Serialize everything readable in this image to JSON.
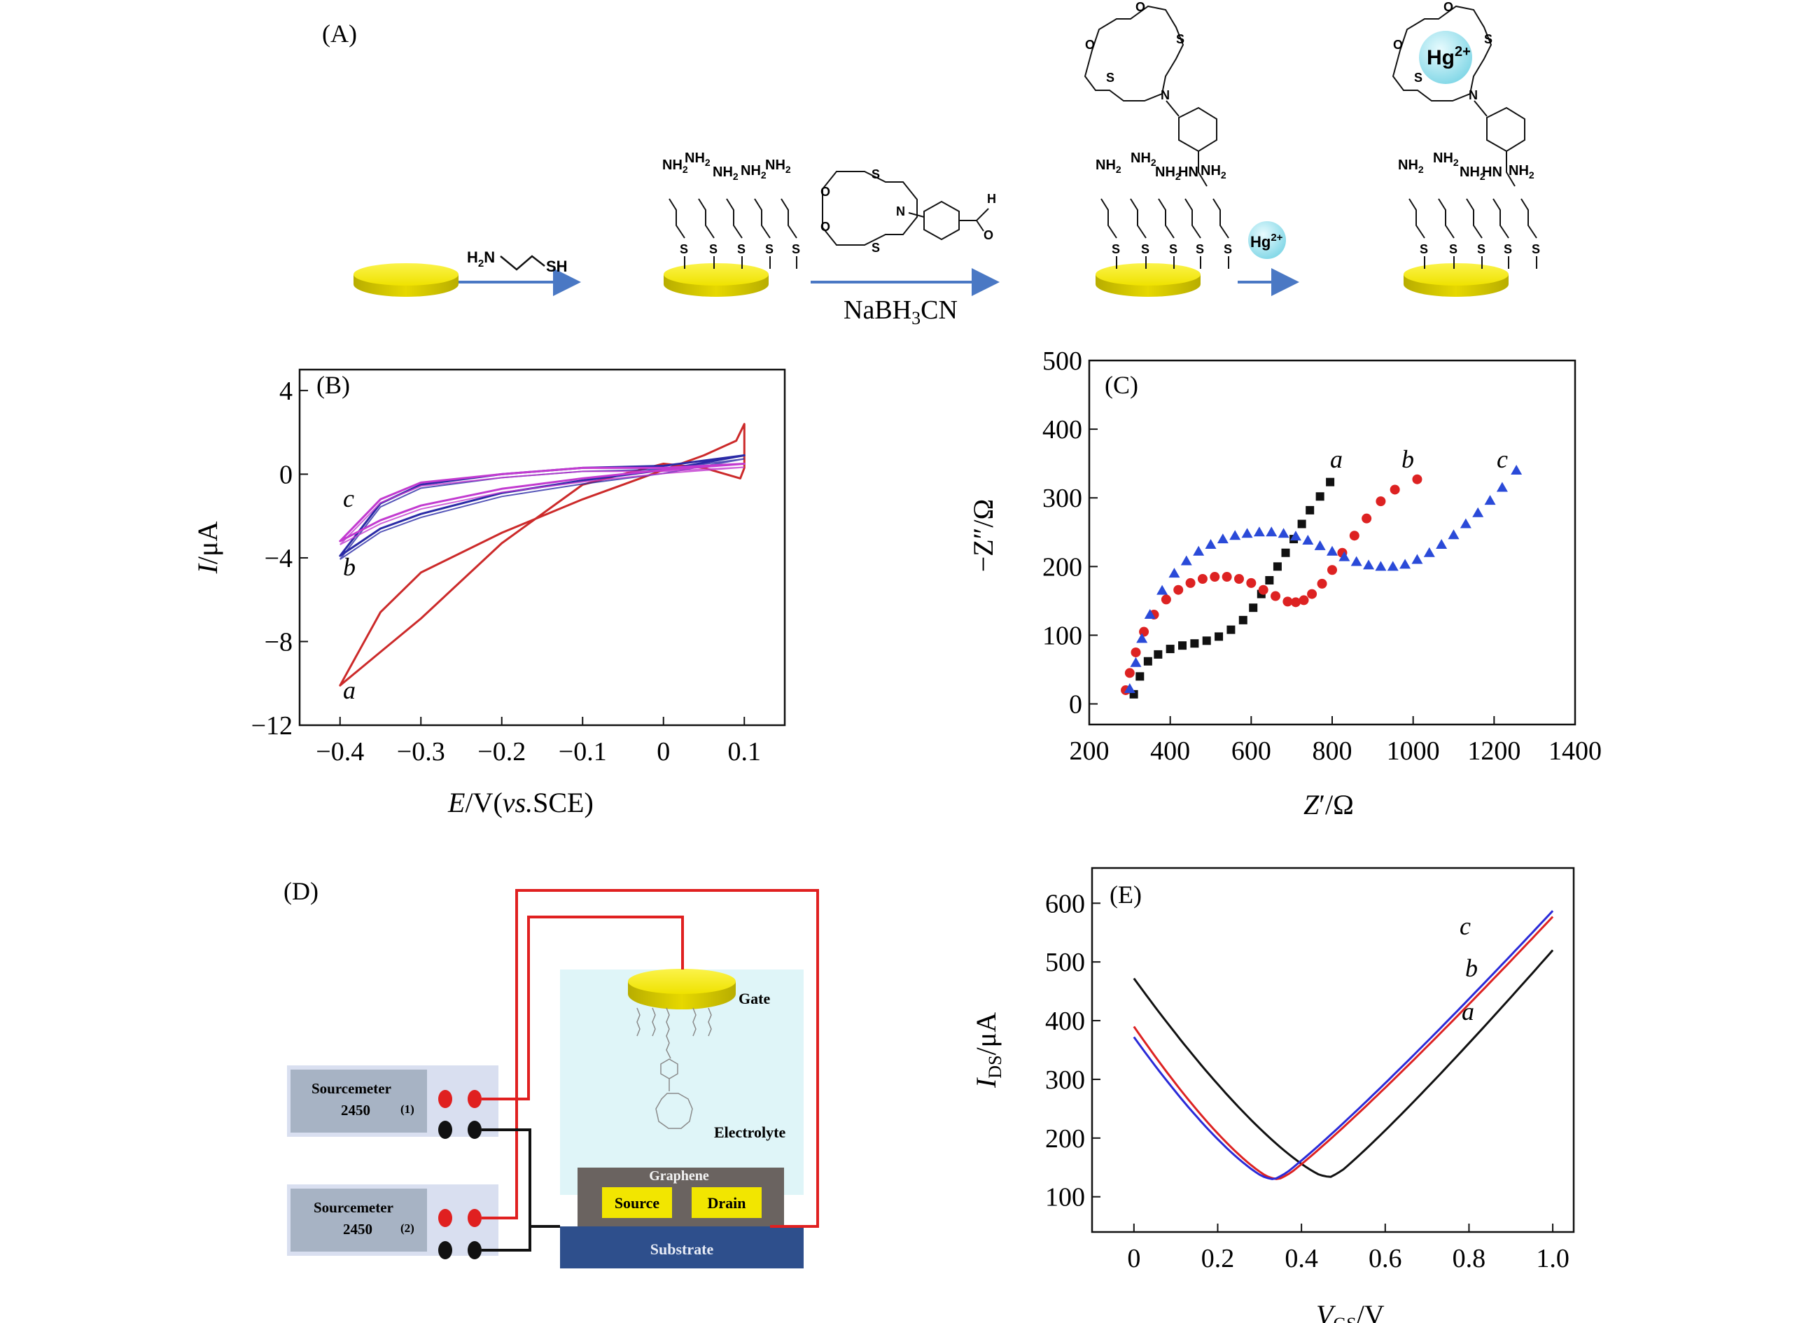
{
  "panels": {
    "A": {
      "label": "(A)",
      "reagent1": {
        "left": "H",
        "sub": "2",
        "mid": "N",
        "right": "SH"
      },
      "reagent2": {
        "main": "NaBH",
        "sub": "3",
        "tail": "CN"
      },
      "reagent3": {
        "main": "Hg",
        "sup": "2+"
      },
      "crown_atoms": {
        "O": "O",
        "S": "S",
        "N": "N"
      },
      "aldehyde": {
        "H": "H",
        "O": "O"
      },
      "amine": {
        "main": "NH",
        "sub": "2"
      },
      "hn": "HN",
      "s": "S",
      "hg_bubble": {
        "main": "Hg",
        "sup": "2+"
      },
      "colors": {
        "gold": "#f2e600",
        "gold_edge": "#c9c200",
        "arrow": "#4a78c4",
        "hg": "#9fe3ee"
      }
    },
    "D": {
      "label": "(D)",
      "sourcemeter1": {
        "name": "Sourcemeter",
        "model": "2450",
        "index": "(1)"
      },
      "sourcemeter2": {
        "name": "Sourcemeter",
        "model": "2450",
        "index": "(2)"
      },
      "gate": "Gate",
      "electrolyte": "Electrolyte",
      "graphene": "Graphene",
      "source": "Source",
      "drain": "Drain",
      "substrate": "Substrate",
      "colors": {
        "wire_red": "#e02020",
        "wire_black": "#111111",
        "meter": "#a7b3c4",
        "meter_bg": "#d9dff0",
        "cell": "#dff5f8",
        "substrate": "#2e4f8c",
        "graphene": "#6a6360",
        "electrode": "#f2e600"
      }
    }
  },
  "chart_data": [
    {
      "panel": "(B)",
      "type": "line",
      "xlabel": "E/V(vs.SCE)",
      "ylabel": "I/μA",
      "xlim": [
        -0.45,
        0.15
      ],
      "ylim": [
        -12,
        5
      ],
      "xticks": [
        -0.4,
        -0.3,
        -0.2,
        -0.1,
        0,
        0.1
      ],
      "xtick_labels": [
        "−0.4",
        "−0.3",
        "−0.2",
        "−0.1",
        "0",
        "0.1"
      ],
      "yticks": [
        4,
        0,
        -4,
        -8,
        -12
      ],
      "ytick_labels": [
        "4",
        "0",
        "−4",
        "−8",
        "−12"
      ],
      "series": [
        {
          "name": "a",
          "color": "#cc2a2a",
          "upper": [
            [
              -0.4,
              -10.1
            ],
            [
              -0.35,
              -6.6
            ],
            [
              -0.3,
              -4.7
            ],
            [
              -0.2,
              -2.8
            ],
            [
              -0.1,
              -1.2
            ],
            [
              0.0,
              0.2
            ],
            [
              0.05,
              0.9
            ],
            [
              0.09,
              1.6
            ],
            [
              0.1,
              2.4
            ]
          ],
          "lower": [
            [
              -0.4,
              -10.1
            ],
            [
              -0.35,
              -8.5
            ],
            [
              -0.3,
              -6.9
            ],
            [
              -0.2,
              -3.3
            ],
            [
              -0.1,
              -0.5
            ],
            [
              0.0,
              0.5
            ],
            [
              0.05,
              0.3
            ],
            [
              0.095,
              -0.2
            ],
            [
              0.1,
              0.3
            ]
          ]
        },
        {
          "name": "b",
          "color": "#2a2aa6",
          "upper": [
            [
              -0.4,
              -3.9
            ],
            [
              -0.35,
              -2.6
            ],
            [
              -0.3,
              -1.9
            ],
            [
              -0.2,
              -0.9
            ],
            [
              -0.1,
              -0.3
            ],
            [
              0.0,
              0.2
            ],
            [
              0.1,
              0.9
            ]
          ],
          "lower": [
            [
              -0.4,
              -3.9
            ],
            [
              -0.35,
              -1.4
            ],
            [
              -0.3,
              -0.5
            ],
            [
              -0.2,
              0.0
            ],
            [
              -0.1,
              0.3
            ],
            [
              0.0,
              0.4
            ],
            [
              0.1,
              0.9
            ]
          ]
        },
        {
          "name": "c",
          "color": "#c23ad0",
          "upper": [
            [
              -0.4,
              -3.2
            ],
            [
              -0.35,
              -2.2
            ],
            [
              -0.3,
              -1.5
            ],
            [
              -0.2,
              -0.7
            ],
            [
              -0.1,
              -0.2
            ],
            [
              0.0,
              0.2
            ],
            [
              0.1,
              0.5
            ]
          ],
          "lower": [
            [
              -0.4,
              -3.2
            ],
            [
              -0.35,
              -1.2
            ],
            [
              -0.3,
              -0.4
            ],
            [
              -0.2,
              0.0
            ],
            [
              -0.1,
              0.3
            ],
            [
              0.0,
              0.3
            ],
            [
              0.1,
              0.5
            ]
          ]
        }
      ]
    },
    {
      "panel": "(C)",
      "type": "scatter",
      "xlabel": "Z′/Ω",
      "ylabel": "−Z″/Ω",
      "xlim": [
        200,
        1400
      ],
      "ylim": [
        -30,
        500
      ],
      "xticks": [
        200,
        400,
        600,
        800,
        1000,
        1200,
        1400
      ],
      "xtick_labels": [
        "200",
        "400",
        "600",
        "800",
        "1000",
        "1200",
        "1400"
      ],
      "yticks": [
        0,
        100,
        200,
        300,
        400,
        500
      ],
      "ytick_labels": [
        "0",
        "100",
        "200",
        "300",
        "400",
        "500"
      ],
      "series": [
        {
          "name": "a",
          "color": "#111111",
          "marker": "square",
          "points": [
            [
              310,
              14
            ],
            [
              325,
              40
            ],
            [
              345,
              62
            ],
            [
              370,
              72
            ],
            [
              400,
              80
            ],
            [
              430,
              85
            ],
            [
              460,
              88
            ],
            [
              490,
              92
            ],
            [
              520,
              98
            ],
            [
              550,
              108
            ],
            [
              580,
              122
            ],
            [
              605,
              140
            ],
            [
              625,
              160
            ],
            [
              645,
              180
            ],
            [
              665,
              200
            ],
            [
              685,
              220
            ],
            [
              705,
              240
            ],
            [
              725,
              262
            ],
            [
              745,
              282
            ],
            [
              770,
              302
            ],
            [
              795,
              323
            ]
          ]
        },
        {
          "name": "b",
          "color": "#dd2222",
          "marker": "circle",
          "points": [
            [
              290,
              20
            ],
            [
              300,
              45
            ],
            [
              315,
              75
            ],
            [
              335,
              105
            ],
            [
              360,
              130
            ],
            [
              390,
              152
            ],
            [
              420,
              166
            ],
            [
              450,
              176
            ],
            [
              480,
              182
            ],
            [
              510,
              185
            ],
            [
              540,
              185
            ],
            [
              570,
              182
            ],
            [
              600,
              176
            ],
            [
              630,
              166
            ],
            [
              660,
              157
            ],
            [
              690,
              149
            ],
            [
              710,
              148
            ],
            [
              730,
              151
            ],
            [
              750,
              160
            ],
            [
              775,
              175
            ],
            [
              800,
              195
            ],
            [
              825,
              220
            ],
            [
              855,
              245
            ],
            [
              885,
              270
            ],
            [
              920,
              295
            ],
            [
              955,
              312
            ],
            [
              1010,
              327
            ]
          ]
        },
        {
          "name": "c",
          "color": "#2a4ad8",
          "marker": "triangle",
          "points": [
            [
              300,
              22
            ],
            [
              315,
              60
            ],
            [
              330,
              95
            ],
            [
              350,
              130
            ],
            [
              380,
              165
            ],
            [
              410,
              190
            ],
            [
              440,
              208
            ],
            [
              470,
              222
            ],
            [
              500,
              232
            ],
            [
              530,
              240
            ],
            [
              560,
              245
            ],
            [
              590,
              248
            ],
            [
              620,
              250
            ],
            [
              650,
              250
            ],
            [
              680,
              248
            ],
            [
              710,
              244
            ],
            [
              740,
              238
            ],
            [
              770,
              230
            ],
            [
              800,
              222
            ],
            [
              830,
              214
            ],
            [
              860,
              207
            ],
            [
              890,
              202
            ],
            [
              920,
              200
            ],
            [
              950,
              200
            ],
            [
              980,
              203
            ],
            [
              1010,
              210
            ],
            [
              1040,
              220
            ],
            [
              1070,
              232
            ],
            [
              1100,
              246
            ],
            [
              1130,
              262
            ],
            [
              1160,
              278
            ],
            [
              1190,
              296
            ],
            [
              1220,
              315
            ],
            [
              1255,
              340
            ]
          ]
        }
      ]
    },
    {
      "panel": "(E)",
      "type": "line",
      "xlabel": {
        "main": "V",
        "sub": "GS",
        "tail": "/V"
      },
      "ylabel": {
        "main": "I",
        "sub": "DS",
        "tail": "/μA"
      },
      "xlim": [
        -0.1,
        1.05
      ],
      "ylim": [
        40,
        660
      ],
      "xticks": [
        0,
        0.2,
        0.4,
        0.6,
        0.8,
        1.0
      ],
      "xtick_labels": [
        "0",
        "0.2",
        "0.4",
        "0.6",
        "0.8",
        "1.0"
      ],
      "yticks": [
        100,
        200,
        300,
        400,
        500,
        600
      ],
      "ytick_labels": [
        "100",
        "200",
        "300",
        "400",
        "500",
        "600"
      ],
      "series": [
        {
          "name": "a",
          "color": "#111111",
          "vmin": 0.47,
          "imin": 130,
          "i0": 472,
          "i1": 520
        },
        {
          "name": "b",
          "color": "#dd2222",
          "vmin": 0.345,
          "imin": 126,
          "i0": 390,
          "i1": 577
        },
        {
          "name": "c",
          "color": "#2a2ad8",
          "vmin": 0.335,
          "imin": 126,
          "i0": 372,
          "i1": 587
        }
      ]
    }
  ]
}
